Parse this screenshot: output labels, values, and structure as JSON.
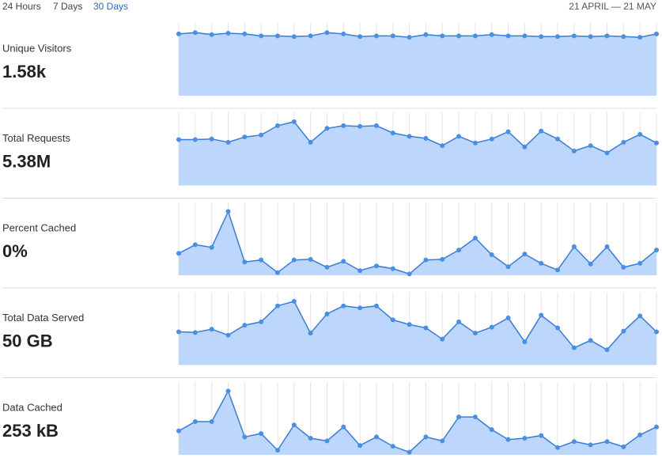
{
  "header": {
    "tabs": [
      "24 Hours",
      "7 Days",
      "30 Days"
    ],
    "active_tab": 2,
    "date_range": "21 APRIL — 21 MAY"
  },
  "chart_data": [
    {
      "type": "area",
      "title": "Unique Visitors",
      "total": "1.58k",
      "fill": "#bcd7fb",
      "color": "#3a7bd5",
      "ylim": [
        0,
        100
      ],
      "values": [
        93,
        95,
        92,
        94,
        93,
        90,
        90,
        89,
        90,
        95,
        93,
        89,
        90,
        90,
        88,
        92,
        90,
        90,
        90,
        92,
        90,
        90,
        89,
        89,
        90,
        89,
        90,
        89,
        88,
        93
      ]
    },
    {
      "type": "area",
      "title": "Total Requests",
      "total": "5.38M",
      "fill": "#bcd7fb",
      "color": "#3a7bd5",
      "ylim": [
        0,
        100
      ],
      "values": [
        69,
        69,
        70,
        65,
        73,
        76,
        90,
        96,
        65,
        86,
        90,
        89,
        90,
        79,
        74,
        71,
        60,
        74,
        64,
        70,
        81,
        58,
        82,
        70,
        52,
        60,
        49,
        65,
        77,
        64
      ]
    },
    {
      "type": "area",
      "title": "Percent Cached",
      "total": "0%",
      "fill": "#bcd7fb",
      "color": "#3a7bd5",
      "ylim": [
        0,
        100
      ],
      "values": [
        33,
        46,
        42,
        96,
        20,
        23,
        4,
        23,
        24,
        12,
        21,
        7,
        14,
        10,
        2,
        23,
        24,
        38,
        56,
        31,
        13,
        32,
        18,
        8,
        43,
        17,
        43,
        12,
        18,
        38
      ]
    },
    {
      "type": "area",
      "title": "Total Data Served",
      "total": "50 GB",
      "fill": "#bcd7fb",
      "color": "#3a7bd5",
      "ylim": [
        0,
        100
      ],
      "values": [
        50,
        49,
        54,
        45,
        60,
        65,
        89,
        96,
        48,
        77,
        89,
        86,
        89,
        68,
        61,
        56,
        39,
        65,
        48,
        57,
        71,
        35,
        75,
        56,
        26,
        37,
        23,
        51,
        74,
        50
      ]
    },
    {
      "type": "area",
      "title": "Data Cached",
      "total": "253 kB",
      "fill": "#bcd7fb",
      "color": "#3a7bd5",
      "ylim": [
        0,
        100
      ],
      "values": [
        36,
        50,
        50,
        96,
        27,
        32,
        7,
        45,
        25,
        21,
        42,
        14,
        27,
        13,
        4,
        27,
        21,
        57,
        57,
        38,
        23,
        25,
        29,
        11,
        20,
        15,
        20,
        12,
        30,
        42
      ]
    }
  ]
}
